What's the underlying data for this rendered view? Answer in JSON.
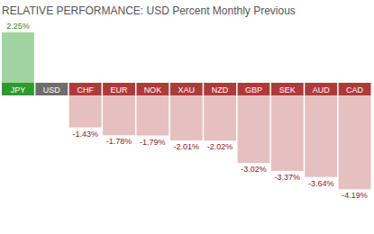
{
  "chart_data": {
    "type": "bar",
    "title": "RELATIVE PERFORMANCE: USD Percent Monthly Previous",
    "categories": [
      "JPY",
      "USD",
      "CHF",
      "EUR",
      "NOK",
      "XAU",
      "NZD",
      "GBP",
      "SEK",
      "AUD",
      "CAD"
    ],
    "values": [
      2.25,
      null,
      -1.43,
      -1.78,
      -1.79,
      -2.01,
      -2.02,
      -3.02,
      -3.37,
      -3.64,
      -4.19
    ],
    "value_labels": [
      "2.25%",
      null,
      "-1.43%",
      "-1.78%",
      "-1.79%",
      "-2.01%",
      "-2.02%",
      "-3.02%",
      "-3.37%",
      "-3.64%",
      "-4.19%"
    ],
    "colors": [
      "#2e9a2e",
      "#6d6d6d",
      "#b03a3a",
      "#b03a3a",
      "#b03a3a",
      "#b03a3a",
      "#b03a3a",
      "#b03a3a",
      "#b03a3a",
      "#b03a3a",
      "#b03a3a"
    ],
    "data_labels": true,
    "tick_labels": "x",
    "grid": false
  }
}
